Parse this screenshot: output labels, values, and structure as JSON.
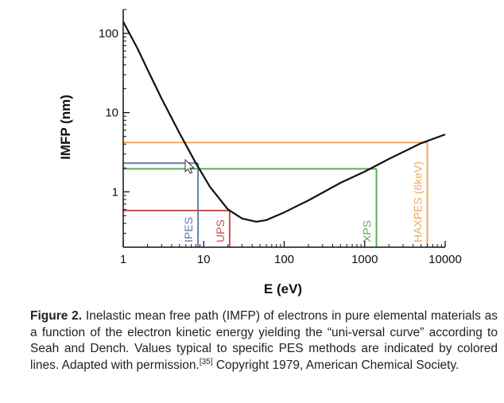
{
  "chart_data": {
    "type": "line",
    "xlabel": "E (eV)",
    "ylabel": "IMFP (nm)",
    "xscale": "log",
    "yscale": "log",
    "xlim": [
      1,
      10000
    ],
    "ylim": [
      0.2,
      200
    ],
    "x_ticks": [
      {
        "value": 1,
        "label": "1"
      },
      {
        "value": 10,
        "label": "10"
      },
      {
        "value": 100,
        "label": "100"
      },
      {
        "value": 1000,
        "label": "1000"
      },
      {
        "value": 10000,
        "label": "10000"
      }
    ],
    "y_ticks": [
      {
        "value": 1,
        "label": "1"
      },
      {
        "value": 10,
        "label": "10"
      },
      {
        "value": 100,
        "label": "100"
      }
    ],
    "series": [
      {
        "color": "#111111",
        "x": [
          1,
          1.5,
          2,
          3,
          5,
          8,
          12,
          20,
          30,
          45,
          60,
          100,
          200,
          500,
          1000,
          2000,
          5000,
          10000
        ],
        "y": [
          140,
          65,
          35,
          15,
          5.5,
          2.3,
          1.15,
          0.6,
          0.46,
          0.42,
          0.44,
          0.55,
          0.78,
          1.3,
          1.8,
          2.6,
          4.1,
          5.3
        ]
      }
    ],
    "methods": [
      {
        "label": "IPES",
        "color": "#5B7DB1",
        "energy": 8.5,
        "imfp": 2.3
      },
      {
        "label": "UPS",
        "color": "#C0504D",
        "energy": 21,
        "imfp": 0.58
      },
      {
        "label": "XPS",
        "color": "#5AAE5A",
        "energy": 1400,
        "imfp": 1.95
      },
      {
        "label": "HAXPES (6keV)",
        "color": "#F0A85A",
        "energy": 6000,
        "imfp": 4.2
      }
    ]
  },
  "caption": {
    "figure_label": "Figure 2.",
    "text": "Inelastic mean free path (IMFP) of electrons in pure elemental materials as a function of the electron kinetic energy yielding the “uni-versal curve” according to Seah and Dench. Values typical to specific PES methods are indicated by colored lines. Adapted with permission.",
    "ref": "[35]",
    "copyright": "Copyright 1979, American Chemical Society."
  }
}
